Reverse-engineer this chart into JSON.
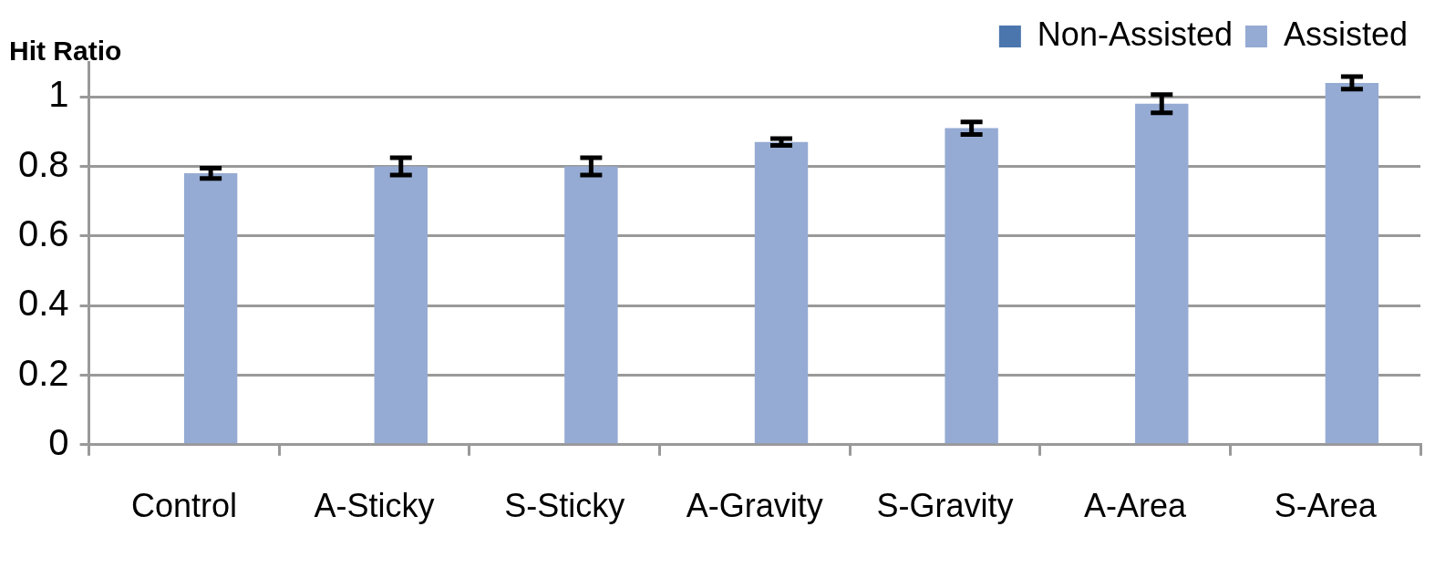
{
  "chart_data": {
    "type": "bar",
    "ylabel": "Hit Ratio",
    "categories": [
      "Control",
      "A-Sticky",
      "S-Sticky",
      "A-Gravity",
      "S-Gravity",
      "A-Area",
      "S-Area"
    ],
    "series": [
      {
        "name": "Non-Assisted",
        "color": "#4a76ad",
        "values": [
          null,
          null,
          null,
          null,
          null,
          null,
          null
        ]
      },
      {
        "name": "Assisted",
        "color": "#95abd3",
        "values": [
          0.78,
          0.8,
          0.8,
          0.87,
          0.91,
          0.98,
          1.04
        ],
        "errors": [
          0.015,
          0.025,
          0.025,
          0.01,
          0.018,
          0.026,
          0.018
        ]
      }
    ],
    "ylim": [
      0,
      1.1
    ],
    "yticks": [
      0,
      0.2,
      0.4,
      0.6,
      0.8,
      1
    ],
    "grid": "y",
    "legend": "top right"
  }
}
